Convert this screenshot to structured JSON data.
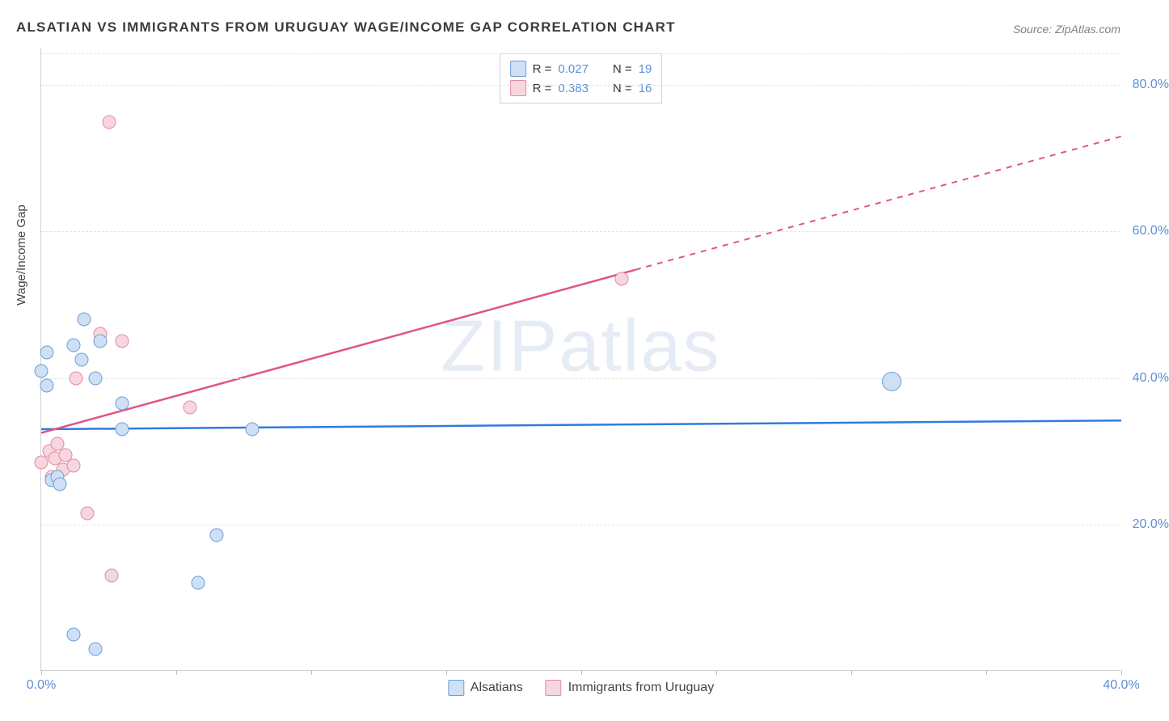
{
  "title": "ALSATIAN VS IMMIGRANTS FROM URUGUAY WAGE/INCOME GAP CORRELATION CHART",
  "source": "Source: ZipAtlas.com",
  "y_axis_label": "Wage/Income Gap",
  "watermark": "ZIPatlas",
  "chart": {
    "type": "scatter",
    "background_color": "#ffffff",
    "grid_color": "#e4e4e4",
    "axis_color": "#d0d0d0",
    "tick_label_color": "#5b8fd6",
    "tick_fontsize": 16,
    "title_fontsize": 17,
    "title_color": "#3c3c3c",
    "xlim": [
      0,
      40
    ],
    "ylim": [
      0,
      85
    ],
    "x_ticks": [
      0,
      5,
      10,
      15,
      20,
      25,
      30,
      35,
      40
    ],
    "x_tick_labels": [
      "0.0%",
      "",
      "",
      "",
      "",
      "",
      "",
      "",
      "40.0%"
    ],
    "y_ticks": [
      20,
      40,
      60,
      80
    ],
    "y_tick_labels": [
      "20.0%",
      "40.0%",
      "60.0%",
      "80.0%"
    ],
    "marker_radius": 8.5,
    "marker_border_width": 1.5,
    "trend_line_width": 2.5,
    "series": [
      {
        "key": "alsatians",
        "label": "Alsatians",
        "fill_color": "#cfe0f4",
        "stroke_color": "#6a9fdc",
        "trend_color": "#2f7be0",
        "r_value": "0.027",
        "n_value": "19",
        "trend": {
          "x1": 0,
          "y1": 33.0,
          "x2": 40,
          "y2": 34.2,
          "dashed": false
        },
        "points": [
          {
            "x": 0.0,
            "y": 41.0
          },
          {
            "x": 0.2,
            "y": 43.5
          },
          {
            "x": 0.2,
            "y": 39.0
          },
          {
            "x": 0.4,
            "y": 26.0
          },
          {
            "x": 0.6,
            "y": 26.5
          },
          {
            "x": 0.7,
            "y": 25.5
          },
          {
            "x": 1.2,
            "y": 44.5
          },
          {
            "x": 1.5,
            "y": 42.5
          },
          {
            "x": 1.6,
            "y": 48.0
          },
          {
            "x": 2.0,
            "y": 40.0
          },
          {
            "x": 2.2,
            "y": 45.0
          },
          {
            "x": 3.0,
            "y": 36.5
          },
          {
            "x": 3.0,
            "y": 33.0
          },
          {
            "x": 1.2,
            "y": 5.0
          },
          {
            "x": 2.0,
            "y": 3.0
          },
          {
            "x": 5.8,
            "y": 12.0
          },
          {
            "x": 6.5,
            "y": 18.5
          },
          {
            "x": 7.8,
            "y": 33.0
          },
          {
            "x": 31.5,
            "y": 39.5,
            "large": true
          }
        ]
      },
      {
        "key": "uruguay",
        "label": "Immigrants from Uruguay",
        "fill_color": "#f7d6df",
        "stroke_color": "#e38aa5",
        "trend_color": "#e05686",
        "r_value": "0.383",
        "n_value": "16",
        "trend": {
          "x1": 0,
          "y1": 32.5,
          "x2": 40,
          "y2": 73.0,
          "dashed_after_x": 22
        },
        "points": [
          {
            "x": 0.0,
            "y": 28.5
          },
          {
            "x": 0.3,
            "y": 30.0
          },
          {
            "x": 0.4,
            "y": 26.5
          },
          {
            "x": 0.5,
            "y": 29.0
          },
          {
            "x": 0.6,
            "y": 31.0
          },
          {
            "x": 0.8,
            "y": 27.5
          },
          {
            "x": 0.9,
            "y": 29.5
          },
          {
            "x": 1.2,
            "y": 28.0
          },
          {
            "x": 1.3,
            "y": 40.0
          },
          {
            "x": 1.7,
            "y": 21.5
          },
          {
            "x": 2.2,
            "y": 46.0
          },
          {
            "x": 2.5,
            "y": 75.0
          },
          {
            "x": 2.6,
            "y": 13.0
          },
          {
            "x": 3.0,
            "y": 45.0
          },
          {
            "x": 5.5,
            "y": 36.0
          },
          {
            "x": 21.5,
            "y": 53.5
          }
        ]
      }
    ]
  },
  "legend_top": {
    "r_label": "R =",
    "n_label": "N ="
  }
}
